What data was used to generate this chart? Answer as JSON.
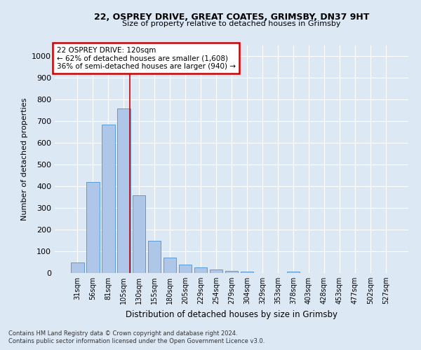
{
  "title_line1": "22, OSPREY DRIVE, GREAT COATES, GRIMSBY, DN37 9HT",
  "title_line2": "Size of property relative to detached houses in Grimsby",
  "xlabel": "Distribution of detached houses by size in Grimsby",
  "ylabel": "Number of detached properties",
  "footnote1": "Contains HM Land Registry data © Crown copyright and database right 2024.",
  "footnote2": "Contains public sector information licensed under the Open Government Licence v3.0.",
  "categories": [
    "31sqm",
    "56sqm",
    "81sqm",
    "105sqm",
    "130sqm",
    "155sqm",
    "180sqm",
    "205sqm",
    "229sqm",
    "254sqm",
    "279sqm",
    "304sqm",
    "329sqm",
    "353sqm",
    "378sqm",
    "403sqm",
    "428sqm",
    "453sqm",
    "477sqm",
    "502sqm",
    "527sqm"
  ],
  "values": [
    50,
    420,
    685,
    760,
    360,
    150,
    70,
    38,
    25,
    15,
    10,
    5,
    0,
    0,
    8,
    0,
    0,
    0,
    0,
    0,
    0
  ],
  "bar_color": "#aec6e8",
  "bar_edge_color": "#5b9bd5",
  "vline_x": 3.42,
  "annotation_text": "22 OSPREY DRIVE: 120sqm\n← 62% of detached houses are smaller (1,608)\n36% of semi-detached houses are larger (940) →",
  "annotation_box_color": "#ffffff",
  "annotation_box_edge": "#cc0000",
  "vline_color": "#cc0000",
  "ylim": [
    0,
    1050
  ],
  "yticks": [
    0,
    100,
    200,
    300,
    400,
    500,
    600,
    700,
    800,
    900,
    1000
  ],
  "background_color": "#dde8f5",
  "grid_color": "#ffffff"
}
